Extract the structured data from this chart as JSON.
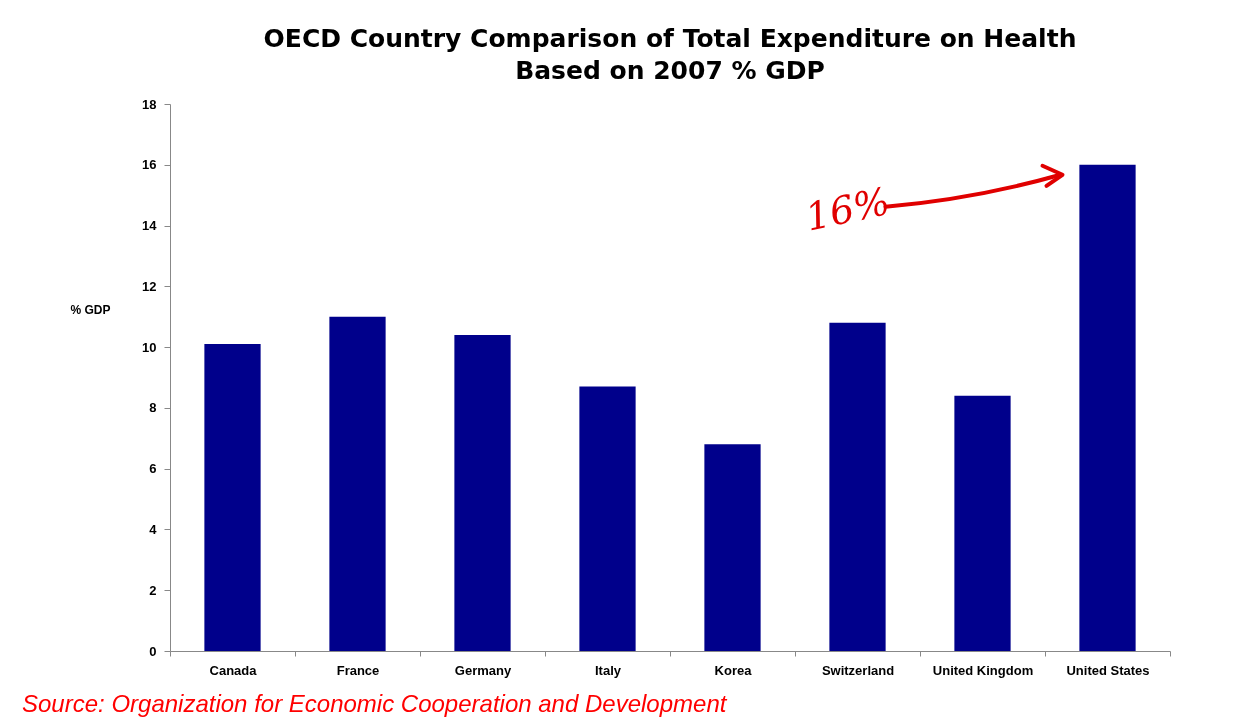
{
  "chart_data": {
    "type": "bar",
    "title": "OECD Country Comparison of Total Expenditure on Health\nBased on 2007 % GDP",
    "ylabel": "% GDP",
    "categories": [
      "Canada",
      "France",
      "Germany",
      "Italy",
      "Korea",
      "Switzerland",
      "United Kingdom",
      "United States"
    ],
    "values": [
      10.1,
      11.0,
      10.4,
      8.7,
      6.8,
      10.8,
      8.4,
      16.0
    ],
    "color": "#00008b",
    "ylim": [
      0,
      18
    ],
    "yticks": [
      0,
      2,
      4,
      6,
      8,
      10,
      12,
      14,
      16,
      18
    ],
    "grid": false,
    "annotations": [
      "16%",
      "Source: Organization for Economic Cooperation and Development"
    ]
  }
}
